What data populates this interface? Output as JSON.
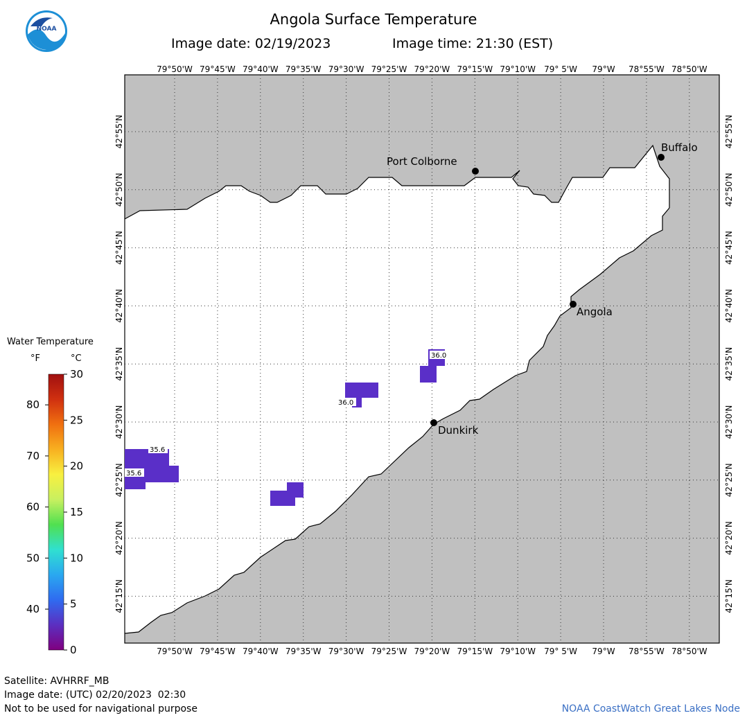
{
  "header": {
    "title": "Angola Surface Temperature",
    "image_date_label": "Image date: 02/19/2023",
    "image_time_label": "Image time: 21:30 (EST)"
  },
  "logo": {
    "text": "NOAA",
    "icon": "noaa-logo-icon"
  },
  "legend": {
    "title": "Water Temperature",
    "unit_f": "°F",
    "unit_c": "°C",
    "f_ticks": [
      "80",
      "70",
      "60",
      "50",
      "40"
    ],
    "c_ticks": [
      "30",
      "25",
      "20",
      "15",
      "10",
      "5",
      "0"
    ],
    "colors": [
      "#800080",
      "#5b2fc0",
      "#2f6bf0",
      "#2aa8f0",
      "#30e0d0",
      "#50e050",
      "#c8f060",
      "#f8f040",
      "#f8b020",
      "#f07010",
      "#d03010",
      "#a01010"
    ]
  },
  "map": {
    "lon_labels": [
      "79°50'W",
      "79°45'W",
      "79°40'W",
      "79°35'W",
      "79°30'W",
      "79°25'W",
      "79°20'W",
      "79°15'W",
      "79°10'W",
      "79° 5'W",
      "79°W",
      "78°55'W",
      "78°50'W"
    ],
    "lat_labels": [
      "42°55'N",
      "42°50'N",
      "42°45'N",
      "42°40'N",
      "42°35'N",
      "42°30'N",
      "42°25'N",
      "42°20'N",
      "42°15'N"
    ],
    "land_color": "#c0c0c0",
    "water_color": "#ffffff",
    "pixel_color": "#5a2fc8",
    "cities": [
      {
        "name": "Port Colborne"
      },
      {
        "name": "Buffalo"
      },
      {
        "name": "Angola"
      },
      {
        "name": "Dunkirk"
      }
    ],
    "readings": [
      "35.6",
      "35.6",
      "36.0",
      "36.0"
    ]
  },
  "footer": {
    "satellite": "Satellite: AVHRRF_MB",
    "utc_date": "Image date: (UTC) 02/20/2023  02:30",
    "disclaimer": "Not to be used for navigational purpose",
    "credit": "NOAA CoastWatch Great Lakes Node"
  }
}
